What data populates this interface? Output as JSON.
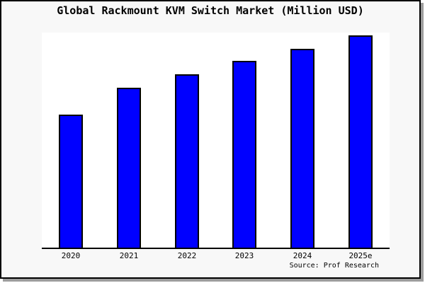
{
  "title": "Global Rackmount KVM Switch Market (Million USD)",
  "source_credit": "Source: Prof Research",
  "colors": {
    "bar_fill": "#0000ff",
    "bar_border": "#000000",
    "figure_background": "#f8f8f8",
    "plot_background": "#ffffff",
    "frame_border": "#000000",
    "frame_shadow": "#9e9e9e"
  },
  "chart_data": {
    "type": "bar",
    "title": "Global Rackmount KVM Switch Market (Million USD)",
    "categories": [
      "2020",
      "2021",
      "2022",
      "2023",
      "2024",
      "2025e"
    ],
    "values": [
      62.7,
      75.3,
      81.7,
      88.0,
      93.7,
      100.0
    ],
    "xlabel": "",
    "ylabel": "",
    "ylim": [
      0,
      101.5
    ],
    "grid": false,
    "legend": "none",
    "y_axis_shown": false,
    "annotation": "Source: Prof Research"
  }
}
